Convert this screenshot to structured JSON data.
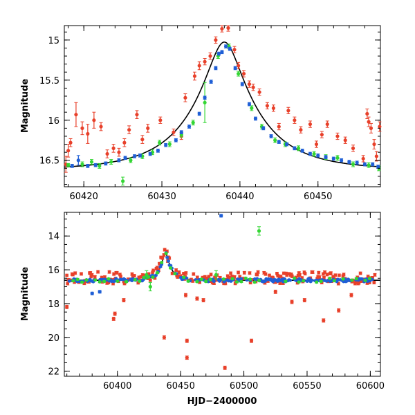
{
  "colors": {
    "red": "#e8402a",
    "blue": "#1f5fd6",
    "green": "#33d633",
    "model": "#000000"
  },
  "chart_data": [
    {
      "type": "scatter",
      "title": "",
      "xlabel": "",
      "ylabel": "Magnitude",
      "xlim": [
        60417.5,
        60458
      ],
      "ylim": [
        16.83,
        14.82
      ],
      "inverted_y": true,
      "x_ticks": [
        60420,
        60430,
        60440,
        60450
      ],
      "y_ticks": [
        15,
        15.5,
        16,
        16.5
      ],
      "x_tick_labels": [
        "60420",
        "60430",
        "60440",
        "60450"
      ],
      "y_tick_labels": [
        "15",
        "15.5",
        "16",
        "16.5"
      ],
      "grid": false,
      "model_curve": {
        "t0": 60438.0,
        "u0": 0.235,
        "tE": 8.5,
        "baseline": 16.62
      },
      "series": [
        {
          "color": "blue",
          "points": [
            [
              60418.5,
              16.57
            ],
            [
              60419.3,
              16.5
            ],
            [
              60420.5,
              16.57
            ],
            [
              60421.5,
              16.56
            ],
            [
              60422.8,
              16.54
            ],
            [
              60424.5,
              16.5
            ],
            [
              60425.3,
              16.47
            ],
            [
              60426.5,
              16.45
            ],
            [
              60427.2,
              16.44
            ],
            [
              60428.5,
              16.42
            ],
            [
              60429.5,
              16.38
            ],
            [
              60430.5,
              16.31
            ],
            [
              60431.8,
              16.25
            ],
            [
              60432.5,
              16.15
            ],
            [
              60433.5,
              16.08
            ],
            [
              60434.8,
              15.92
            ],
            [
              60435.5,
              15.72
            ],
            [
              60436.3,
              15.52
            ],
            [
              60436.9,
              15.35
            ],
            [
              60437.3,
              15.17
            ],
            [
              60437.7,
              15.15
            ],
            [
              60438.2,
              15.08
            ],
            [
              60438.7,
              15.11
            ],
            [
              60439.4,
              15.35
            ],
            [
              60440.3,
              15.55
            ],
            [
              60441.2,
              15.8
            ],
            [
              60442.0,
              15.98
            ],
            [
              60443.0,
              16.1
            ],
            [
              60444.0,
              16.2
            ],
            [
              60445.0,
              16.27
            ],
            [
              60446.0,
              16.3
            ],
            [
              60447.0,
              16.35
            ],
            [
              60448.0,
              16.38
            ],
            [
              60449.0,
              16.42
            ],
            [
              60450.0,
              16.44
            ],
            [
              60451.0,
              16.46
            ],
            [
              60452.0,
              16.48
            ],
            [
              60453.0,
              16.5
            ],
            [
              60454.0,
              16.52
            ],
            [
              60455.0,
              16.53
            ],
            [
              60456.0,
              16.55
            ],
            [
              60457.0,
              16.55
            ],
            [
              60457.7,
              16.58
            ]
          ],
          "errors": [
            0.02,
            0.06,
            0.02,
            0.02,
            0.02,
            0.02,
            0.02,
            0.02,
            0.02,
            0.02,
            0.02,
            0.02,
            0.02,
            0.02,
            0.02,
            0.02,
            0.02,
            0.02,
            0.02,
            0.02,
            0.02,
            0.02,
            0.02,
            0.02,
            0.02,
            0.02,
            0.02,
            0.02,
            0.02,
            0.02,
            0.02,
            0.02,
            0.02,
            0.02,
            0.02,
            0.02,
            0.02,
            0.02,
            0.02,
            0.02,
            0.02,
            0.02,
            0.02
          ]
        },
        {
          "color": "green",
          "points": [
            [
              60418.0,
              16.56
            ],
            [
              60419.8,
              16.55
            ],
            [
              60421.0,
              16.52
            ],
            [
              60422.0,
              16.57
            ],
            [
              60423.5,
              16.52
            ],
            [
              60425.0,
              16.76
            ],
            [
              60426.0,
              16.5
            ],
            [
              60427.5,
              16.45
            ],
            [
              60428.8,
              16.4
            ],
            [
              60429.7,
              16.28
            ],
            [
              60431.0,
              16.3
            ],
            [
              60432.5,
              16.18
            ],
            [
              60434.0,
              16.03
            ],
            [
              60435.5,
              15.78
            ],
            [
              60437.2,
              15.2
            ],
            [
              60438.6,
              15.08
            ],
            [
              60439.8,
              15.42
            ],
            [
              60441.5,
              15.85
            ],
            [
              60442.8,
              16.08
            ],
            [
              60444.5,
              16.25
            ],
            [
              60445.8,
              16.3
            ],
            [
              60447.5,
              16.35
            ],
            [
              60449.5,
              16.42
            ],
            [
              60451.0,
              16.46
            ],
            [
              60452.5,
              16.47
            ],
            [
              60454.5,
              16.55
            ],
            [
              60456.5,
              16.56
            ],
            [
              60457.8,
              16.6
            ]
          ],
          "errors": [
            0.02,
            0.03,
            0.03,
            0.03,
            0.03,
            0.05,
            0.03,
            0.03,
            0.03,
            0.03,
            0.03,
            0.03,
            0.03,
            0.25,
            0.03,
            0.03,
            0.03,
            0.03,
            0.03,
            0.03,
            0.03,
            0.03,
            0.03,
            0.03,
            0.03,
            0.03,
            0.03,
            0.03
          ]
        },
        {
          "color": "red",
          "points": [
            [
              60417.7,
              16.55
            ],
            [
              60418.0,
              16.38
            ],
            [
              60418.3,
              16.28
            ],
            [
              60419.0,
              15.93
            ],
            [
              60419.8,
              16.1
            ],
            [
              60420.5,
              16.17
            ],
            [
              60421.3,
              16.0
            ],
            [
              60422.2,
              16.08
            ],
            [
              60423.0,
              16.42
            ],
            [
              60423.8,
              16.35
            ],
            [
              60424.5,
              16.4
            ],
            [
              60425.2,
              16.28
            ],
            [
              60425.8,
              16.12
            ],
            [
              60426.8,
              15.93
            ],
            [
              60427.5,
              16.24
            ],
            [
              60428.2,
              16.1
            ],
            [
              60429.8,
              16.0
            ],
            [
              60431.5,
              16.15
            ],
            [
              60432.5,
              16.2
            ],
            [
              60433.0,
              15.72
            ],
            [
              60434.2,
              15.45
            ],
            [
              60434.8,
              15.32
            ],
            [
              60435.5,
              15.27
            ],
            [
              60436.2,
              15.2
            ],
            [
              60436.9,
              15.0
            ],
            [
              60437.7,
              14.86
            ],
            [
              60438.5,
              14.85
            ],
            [
              60439.3,
              15.12
            ],
            [
              60439.8,
              15.32
            ],
            [
              60440.5,
              15.42
            ],
            [
              60441.2,
              15.55
            ],
            [
              60441.7,
              15.59
            ],
            [
              60442.5,
              15.65
            ],
            [
              60443.5,
              15.82
            ],
            [
              60444.3,
              15.85
            ],
            [
              60445.0,
              16.08
            ],
            [
              60446.2,
              15.88
            ],
            [
              60447.0,
              16.0
            ],
            [
              60447.8,
              16.12
            ],
            [
              60449.0,
              16.05
            ],
            [
              60449.8,
              16.3
            ],
            [
              60450.5,
              16.18
            ],
            [
              60451.2,
              16.05
            ],
            [
              60452.5,
              16.2
            ],
            [
              60453.5,
              16.25
            ],
            [
              60454.5,
              16.35
            ],
            [
              60455.8,
              16.48
            ],
            [
              60456.3,
              15.92
            ],
            [
              60456.5,
              16.02
            ],
            [
              60456.8,
              16.1
            ],
            [
              60457.2,
              16.3
            ],
            [
              60457.5,
              16.45
            ],
            [
              60457.9,
              16.08
            ]
          ],
          "errors": [
            0.1,
            0.08,
            0.05,
            0.15,
            0.08,
            0.12,
            0.1,
            0.05,
            0.05,
            0.05,
            0.05,
            0.05,
            0.05,
            0.05,
            0.05,
            0.05,
            0.04,
            0.04,
            0.04,
            0.05,
            0.05,
            0.05,
            0.04,
            0.04,
            0.04,
            0.04,
            0.04,
            0.04,
            0.04,
            0.04,
            0.04,
            0.04,
            0.04,
            0.04,
            0.04,
            0.04,
            0.04,
            0.04,
            0.04,
            0.04,
            0.04,
            0.04,
            0.04,
            0.04,
            0.04,
            0.04,
            0.04,
            0.06,
            0.06,
            0.06,
            0.06,
            0.06,
            0.06
          ]
        }
      ]
    },
    {
      "type": "scatter",
      "title": "",
      "xlabel": "HJD−2400000",
      "ylabel": "Magnitude",
      "xlim": [
        60358,
        60608
      ],
      "ylim": [
        22.3,
        12.6
      ],
      "inverted_y": true,
      "x_ticks": [
        60400,
        60450,
        60500,
        60550,
        60600
      ],
      "y_ticks": [
        14,
        16,
        18,
        20,
        22
      ],
      "x_tick_labels": [
        "60400",
        "60450",
        "60500",
        "60550",
        "60600"
      ],
      "y_tick_labels": [
        "14",
        "16",
        "18",
        "20",
        "22"
      ],
      "grid": false,
      "model_curve": {
        "t0": 60438.0,
        "u0": 0.235,
        "tE": 8.5,
        "baseline": 16.62
      },
      "outliers_red": [
        [
          60360,
          18.2
        ],
        [
          60397,
          18.9
        ],
        [
          60398,
          18.6
        ],
        [
          60405,
          17.8
        ],
        [
          60437,
          20.0
        ],
        [
          60454,
          17.5
        ],
        [
          60455,
          20.2
        ],
        [
          60455,
          21.2
        ],
        [
          60463,
          17.7
        ],
        [
          60468,
          17.8
        ],
        [
          60485,
          21.8
        ],
        [
          60506,
          20.2
        ],
        [
          60525,
          17.3
        ],
        [
          60538,
          17.9
        ],
        [
          60548,
          17.8
        ],
        [
          60563,
          19.0
        ],
        [
          60575,
          18.4
        ],
        [
          60585,
          17.5
        ]
      ],
      "outliers_blue": [
        [
          60482,
          12.8
        ],
        [
          60380,
          17.4
        ],
        [
          60386,
          17.3
        ]
      ],
      "outliers_green": [
        [
          60512,
          13.7
        ],
        [
          60423,
          16.3
        ],
        [
          60426,
          17.0
        ],
        [
          60478,
          16.3
        ]
      ]
    }
  ]
}
